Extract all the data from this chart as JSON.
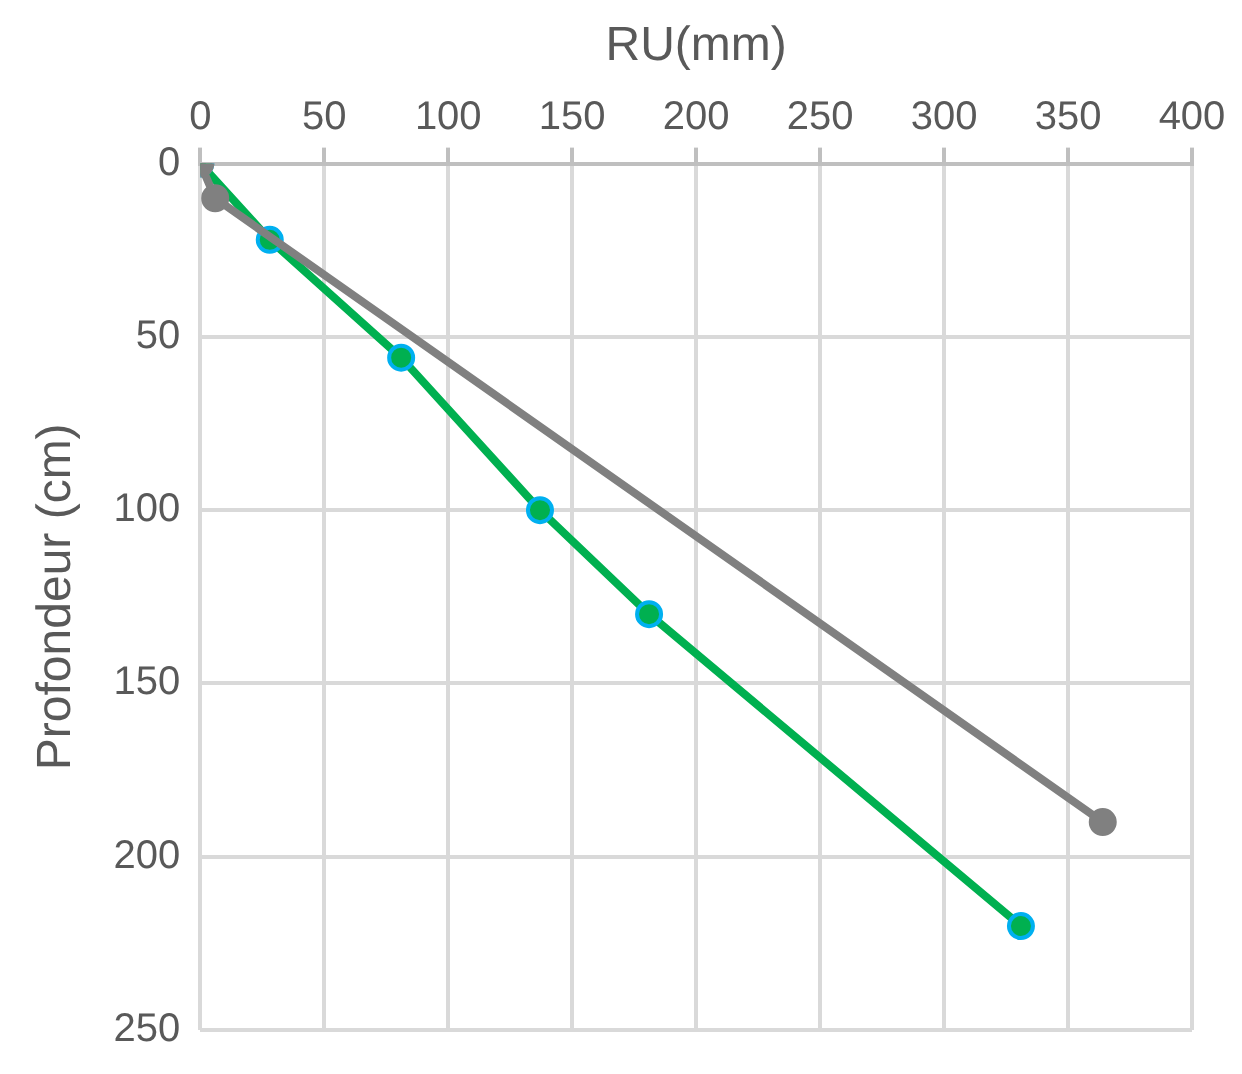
{
  "chart_data": {
    "type": "line",
    "xlabel": "RU(mm)",
    "ylabel": "Profondeur (cm)",
    "xlim": [
      0,
      400
    ],
    "xticks": [
      0,
      50,
      100,
      150,
      200,
      250,
      300,
      350,
      400
    ],
    "ylim": [
      250,
      0
    ],
    "yticks": [
      0,
      50,
      100,
      150,
      200,
      250
    ],
    "grid": true,
    "legend": false,
    "marker": "circle",
    "line_style": "solid",
    "series": [
      {
        "color": "#00b050",
        "x": [
          0,
          28,
          81,
          137,
          181,
          331
        ],
        "values": [
          0,
          22,
          56,
          100,
          130,
          220
        ]
      },
      {
        "color": "#808080",
        "x": [
          0,
          6,
          364
        ],
        "values": [
          0,
          10,
          190
        ]
      }
    ]
  }
}
